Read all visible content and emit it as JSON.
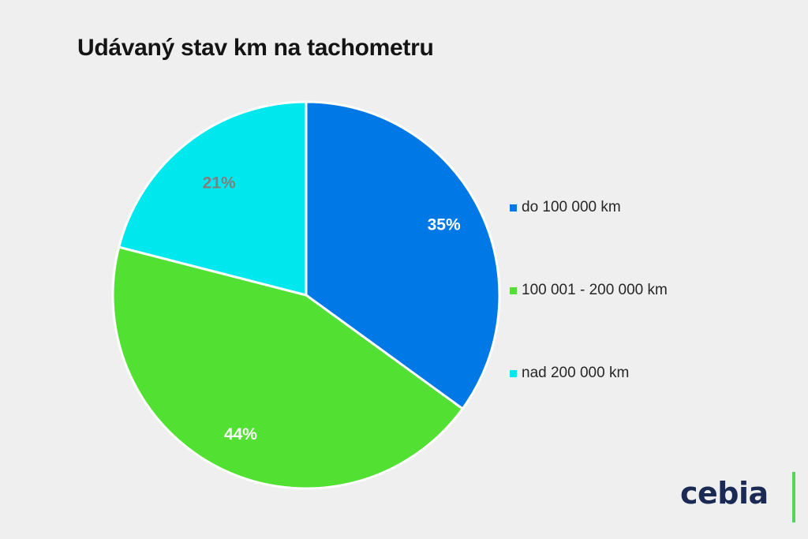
{
  "chart_data": {
    "type": "pie",
    "title": "Udávaný stav km na tachometru",
    "categories": [
      "do 100 000 km",
      "100 001 - 200 000 km",
      "nad 200 000 km"
    ],
    "values": [
      35,
      44,
      21
    ],
    "value_labels": [
      "35%",
      "44%",
      "21%"
    ],
    "colors": [
      "#0078e6",
      "#52e032",
      "#00e8ee"
    ],
    "label_colors": [
      "#ffffff",
      "#ffffff",
      "#7f7f7f"
    ],
    "legend_position": "right",
    "start_angle_deg": 0,
    "direction": "clockwise"
  },
  "legend": {
    "items": [
      {
        "label": "do 100 000 km",
        "color": "#0078e6"
      },
      {
        "label": "100 001 - 200 000 km",
        "color": "#52e032"
      },
      {
        "label": "nad 200 000 km",
        "color": "#00e8ee"
      }
    ]
  },
  "brand": {
    "logo_text": "cebia",
    "logo_color": "#1a2a55",
    "accent_color": "#57d35a"
  }
}
